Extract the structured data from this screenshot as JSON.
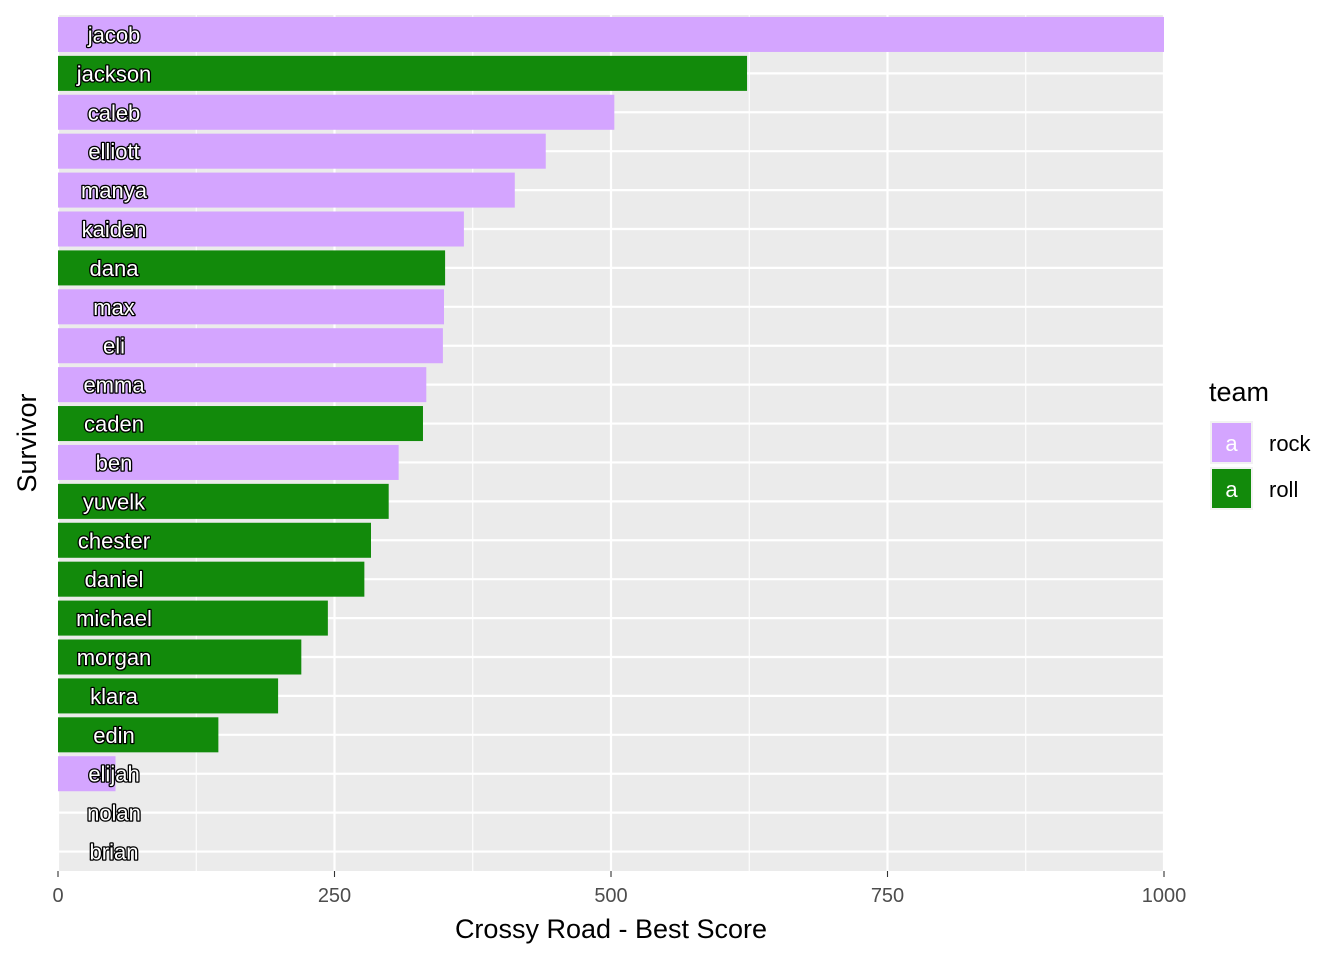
{
  "chart_data": {
    "type": "bar",
    "orientation": "horizontal",
    "xlabel": "Crossy Road  - Best Score",
    "ylabel": "Survivor",
    "xlim": [
      0,
      1000
    ],
    "xticks": [
      0,
      250,
      500,
      750,
      1000
    ],
    "grid": true,
    "legend": {
      "title": "team",
      "position": "right",
      "key_glyph": "a",
      "entries": [
        {
          "label": "rock",
          "color": "#d4a5ff"
        },
        {
          "label": "roll",
          "color": "#128a0b"
        }
      ]
    },
    "bars": [
      {
        "name": "jacob",
        "value": 1000,
        "team": "rock"
      },
      {
        "name": "jackson",
        "value": 623,
        "team": "roll"
      },
      {
        "name": "caleb",
        "value": 503,
        "team": "rock"
      },
      {
        "name": "elliott",
        "value": 441,
        "team": "rock"
      },
      {
        "name": "manya",
        "value": 413,
        "team": "rock"
      },
      {
        "name": "kaiden",
        "value": 367,
        "team": "rock"
      },
      {
        "name": "dana",
        "value": 350,
        "team": "roll"
      },
      {
        "name": "max",
        "value": 349,
        "team": "rock"
      },
      {
        "name": "eli",
        "value": 348,
        "team": "rock"
      },
      {
        "name": "emma",
        "value": 333,
        "team": "rock"
      },
      {
        "name": "caden",
        "value": 330,
        "team": "roll"
      },
      {
        "name": "ben",
        "value": 308,
        "team": "rock"
      },
      {
        "name": "yuvelk",
        "value": 299,
        "team": "roll"
      },
      {
        "name": "chester",
        "value": 283,
        "team": "roll"
      },
      {
        "name": "daniel",
        "value": 277,
        "team": "roll"
      },
      {
        "name": "michael",
        "value": 244,
        "team": "roll"
      },
      {
        "name": "morgan",
        "value": 220,
        "team": "roll"
      },
      {
        "name": "klara",
        "value": 199,
        "team": "roll"
      },
      {
        "name": "edin",
        "value": 145,
        "team": "roll"
      },
      {
        "name": "elijah",
        "value": 52,
        "team": "rock"
      },
      {
        "name": "nolan",
        "value": 0,
        "team": "rock"
      },
      {
        "name": "brian",
        "value": 0,
        "team": "rock"
      }
    ]
  }
}
